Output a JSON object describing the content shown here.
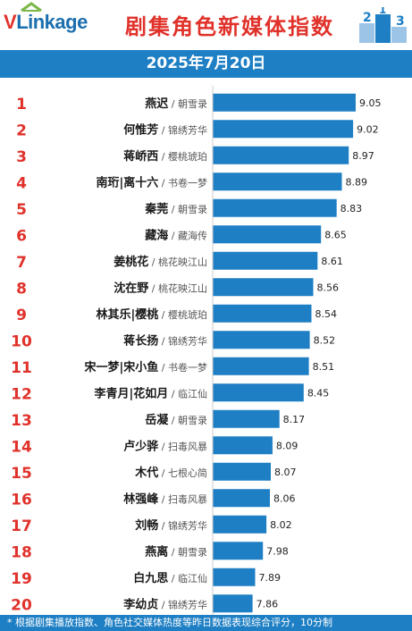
{
  "header": {
    "logo_v": "V",
    "logo_rest": "Linkage",
    "title": "剧集角色新媒体指数",
    "date": "2025年7月20日"
  },
  "footer": {
    "note": "* 根据剧集播放指数、角色社交媒体热度等昨日数据表现综合评分，10分制"
  },
  "colors": {
    "bar": "#1e7fc4",
    "rank": "#e0322b",
    "header_blue": "#1e7fc4",
    "title_red": "#e0322b"
  },
  "chart_data": {
    "type": "bar",
    "orientation": "horizontal",
    "ranks": [
      "1",
      "2",
      "3",
      "4",
      "5",
      "6",
      "7",
      "8",
      "9",
      "10",
      "11",
      "12",
      "13",
      "14",
      "15",
      "16",
      "17",
      "18",
      "19",
      "20"
    ],
    "roles": [
      "燕迟",
      "何惟芳",
      "蒋峤西",
      "南珩|离十六",
      "秦莞",
      "藏海",
      "姜桃花",
      "沈在野",
      "林其乐|樱桃",
      "蒋长扬",
      "宋一梦|宋小鱼",
      "李青月|花如月",
      "岳凝",
      "卢少骅",
      "木代",
      "林强峰",
      "刘畅",
      "燕离",
      "白九思",
      "李幼贞"
    ],
    "dramas": [
      "朝雪录",
      "锦绣芳华",
      "樱桃琥珀",
      "书卷一梦",
      "朝雪录",
      "藏海传",
      "桃花映江山",
      "桃花映江山",
      "樱桃琥珀",
      "锦绣芳华",
      "书卷一梦",
      "临江仙",
      "朝雪录",
      "扫毒风暴",
      "七根心简",
      "扫毒风暴",
      "锦绣芳华",
      "朝雪录",
      "临江仙",
      "锦绣芳华"
    ],
    "values": [
      9.05,
      9.02,
      8.97,
      8.89,
      8.83,
      8.65,
      8.61,
      8.56,
      8.54,
      8.52,
      8.51,
      8.45,
      8.17,
      8.09,
      8.07,
      8.06,
      8.02,
      7.98,
      7.89,
      7.86
    ],
    "value_labels": [
      "9.05",
      "9.02",
      "8.97",
      "8.89",
      "8.83",
      "8.65",
      "8.61",
      "8.56",
      "8.54",
      "8.52",
      "8.51",
      "8.45",
      "8.17",
      "8.09",
      "8.07",
      "8.06",
      "8.02",
      "7.98",
      "7.89",
      "7.86"
    ]
  }
}
